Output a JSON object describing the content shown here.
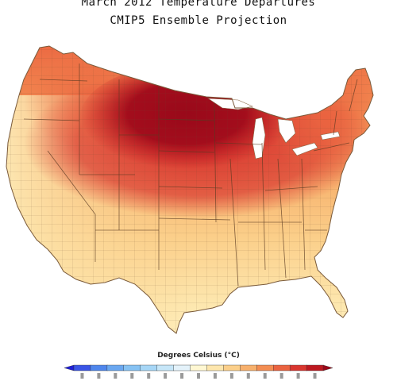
{
  "title": {
    "line1": "March 2012 Temperature Departures",
    "line2": "CMIP5 Ensemble Projection"
  },
  "legend": {
    "title": "Degrees Celsius (°C)",
    "colors": [
      "#1f1fd8",
      "#3a55e6",
      "#4f86ec",
      "#6aa7f0",
      "#86c2f3",
      "#a6d6f6",
      "#c6e6f8",
      "#e4f2fa",
      "#fff7d2",
      "#fde6ad",
      "#fbcf8a",
      "#f7b06c",
      "#f38d52",
      "#ea6340",
      "#d9362f",
      "#bd1820",
      "#99091a"
    ]
  },
  "map": {
    "water_color": "#ffffff",
    "border_color": "#8a6a4a"
  }
}
